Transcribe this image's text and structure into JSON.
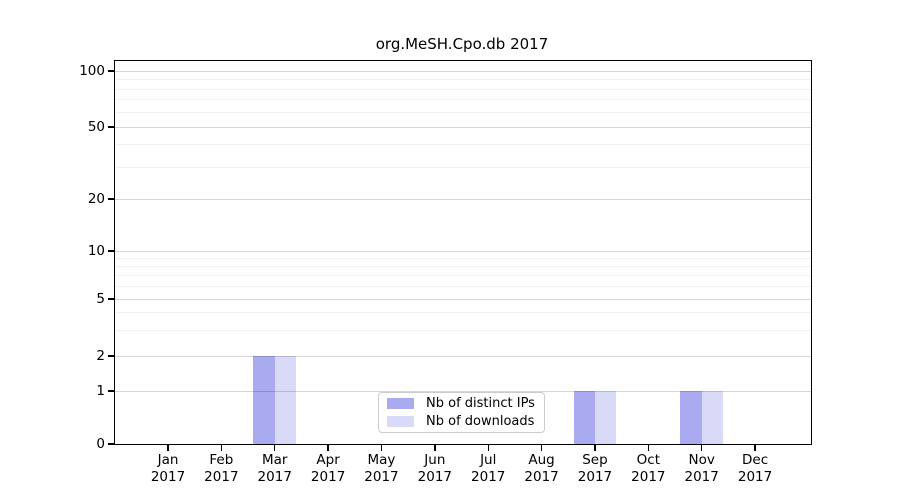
{
  "title": "org.MeSH.Cpo.db 2017",
  "chart_data": {
    "type": "bar",
    "title": "org.MeSH.Cpo.db 2017",
    "year": "2017",
    "months": [
      "Jan",
      "Feb",
      "Mar",
      "Apr",
      "May",
      "Jun",
      "Jul",
      "Aug",
      "Sep",
      "Oct",
      "Nov",
      "Dec"
    ],
    "categories": [
      "Jan 2017",
      "Feb 2017",
      "Mar 2017",
      "Apr 2017",
      "May 2017",
      "Jun 2017",
      "Jul 2017",
      "Aug 2017",
      "Sep 2017",
      "Oct 2017",
      "Nov 2017",
      "Dec 2017"
    ],
    "series": [
      {
        "name": "Nb of distinct IPs",
        "color": "#aaaaf0",
        "values": [
          0,
          0,
          2,
          0,
          0,
          0,
          0,
          0,
          1,
          0,
          1,
          0
        ]
      },
      {
        "name": "Nb of downloads",
        "color": "#d9d9f8",
        "values": [
          0,
          0,
          2,
          0,
          0,
          0,
          0,
          0,
          1,
          0,
          1,
          0
        ]
      }
    ],
    "yticks": [
      0,
      1,
      2,
      5,
      10,
      20,
      50,
      100
    ],
    "ytick_labels": [
      "0",
      "1",
      "2",
      "5",
      "10",
      "20",
      "50",
      "100"
    ],
    "minor_gridlines": [
      3,
      4,
      6,
      7,
      8,
      9,
      30,
      40,
      60,
      70,
      80,
      90
    ],
    "ylim": [
      0,
      110
    ],
    "scale": "log-like-with-zero",
    "grid": true,
    "legend_position": "bottom-center",
    "colors": {
      "axis": "#000000",
      "grid_major": "#d9d9d9",
      "grid_minor": "#f0f0f0",
      "background": "#ffffff"
    }
  }
}
